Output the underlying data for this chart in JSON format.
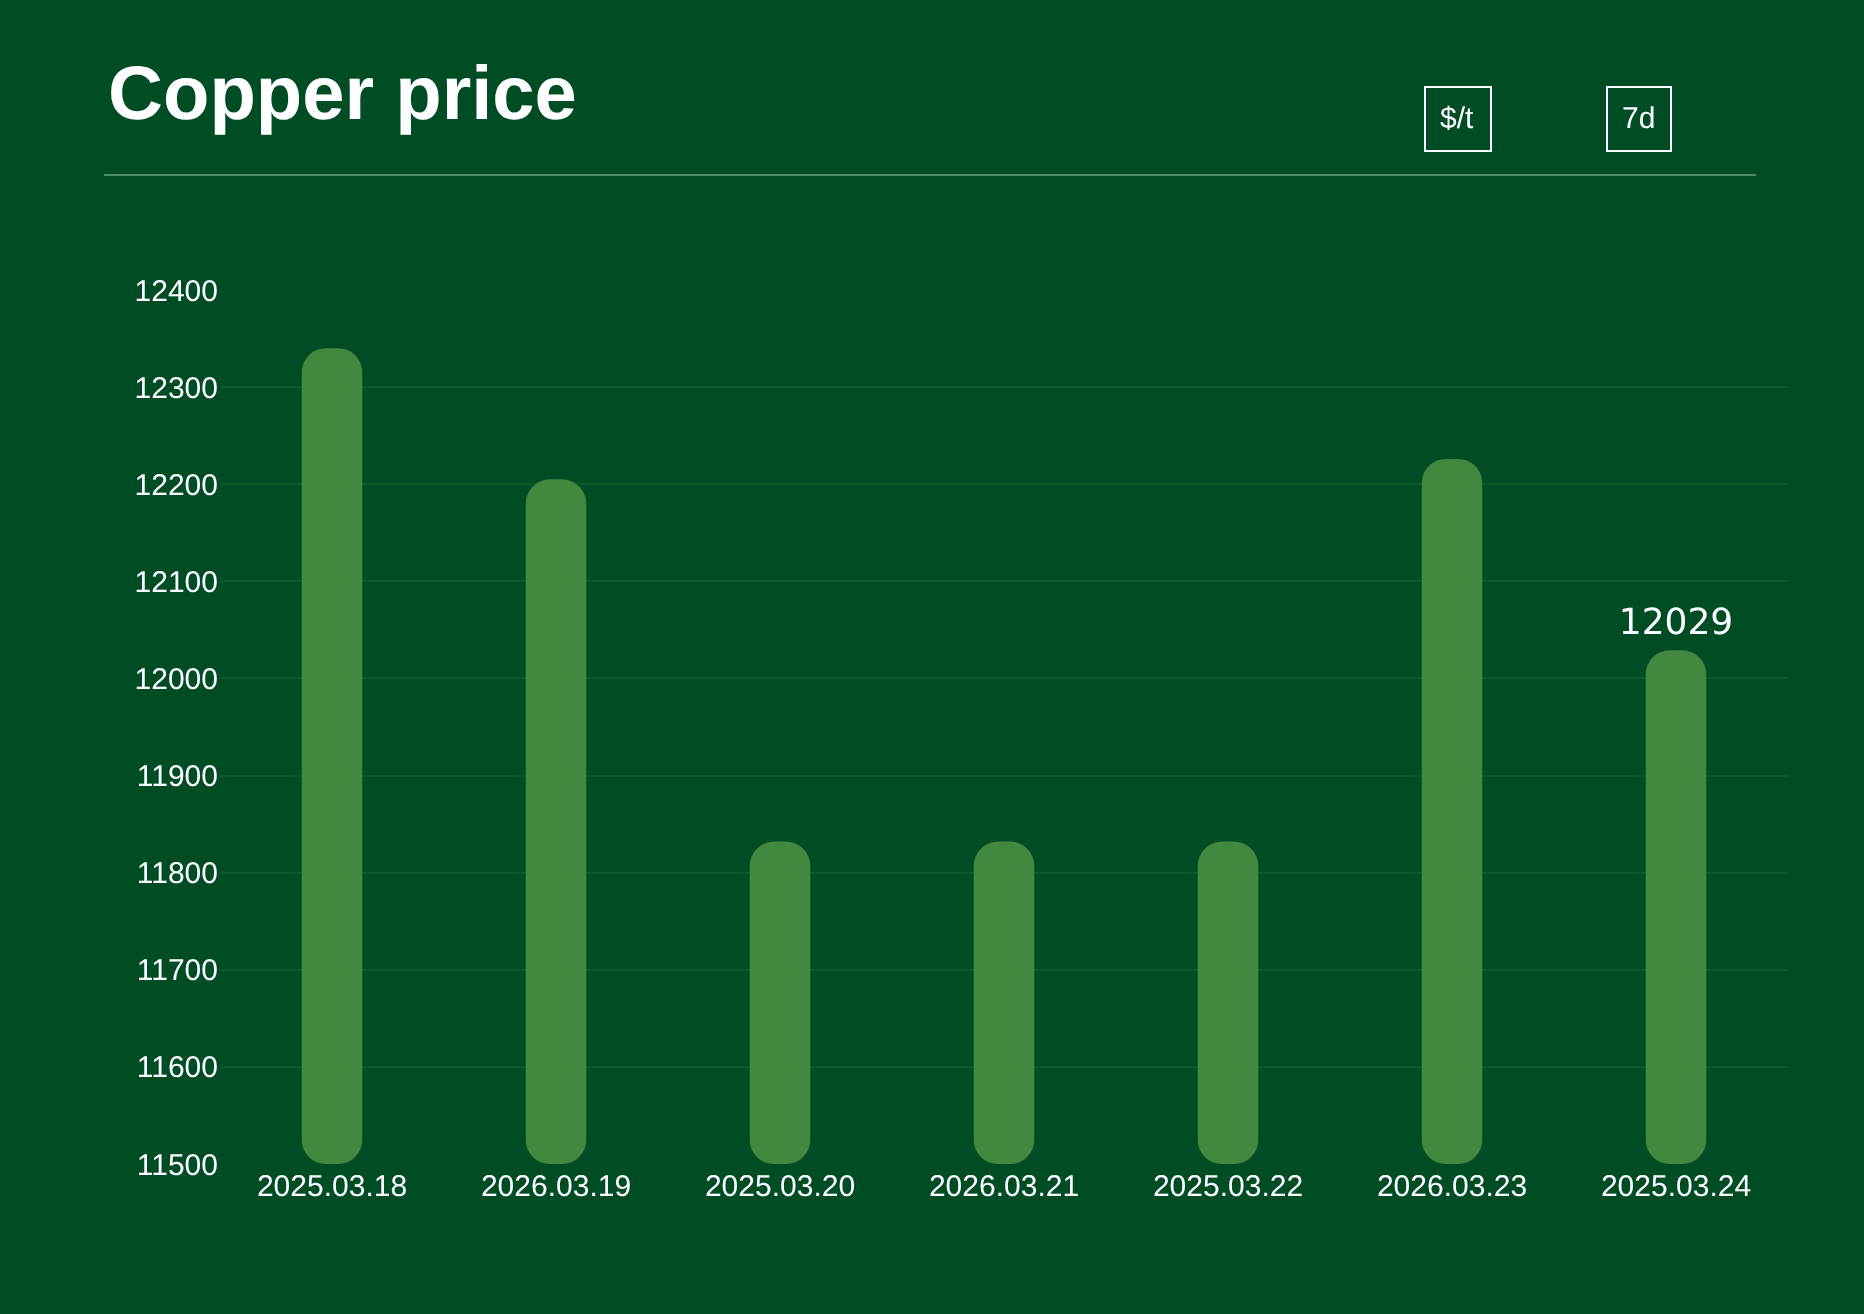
{
  "chart_data": {
    "type": "bar",
    "title": "Copper price",
    "annotations": [
      "$/t",
      "7d"
    ],
    "categories": [
      "2025.03.18",
      "2026.03.19",
      "2025.03.20",
      "2026.03.21",
      "2025.03.22",
      "2026.03.23",
      "2025.03.24"
    ],
    "values": [
      12340,
      12205,
      11832,
      11832,
      11832,
      12226,
      12029
    ],
    "value_labels": [
      null,
      null,
      null,
      null,
      null,
      null,
      "12029"
    ],
    "color": "#43883f",
    "ylim": [
      11500,
      12400
    ],
    "yticks": [
      11500,
      11600,
      11700,
      11800,
      11900,
      12000,
      12100,
      12200,
      12300,
      12400
    ],
    "grid": "y"
  }
}
